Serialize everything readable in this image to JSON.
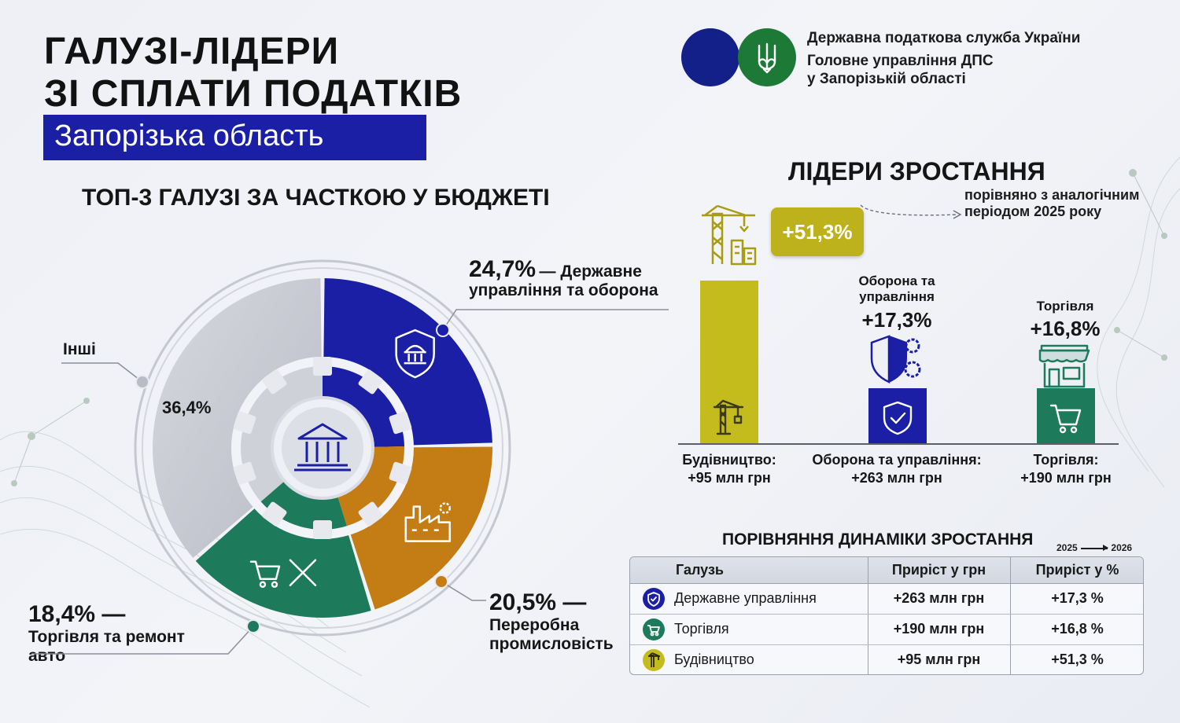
{
  "header": {
    "title_line1": "ГАЛУЗІ-ЛІДЕРИ",
    "title_line2": "ЗІ СПЛАТИ ПОДАТКІВ",
    "region": "Запорізька область"
  },
  "org": {
    "line1": "Державна податкова служба України",
    "line2": "Головне управління ДПС",
    "line3": "у Запорізькій області"
  },
  "colors": {
    "blue": "#1a1fa6",
    "olive": "#c4bb1c",
    "orange": "#c37d14",
    "green": "#1d7a5b",
    "grey": "#c7c9d1",
    "logo_blue": "#13208a",
    "logo_green": "#1d7a36"
  },
  "chart_data": [
    {
      "type": "pie",
      "title": "ТОП-3 ГАЛУЗІ ЗА ЧАСТКОЮ У БЮДЖЕТІ",
      "slices": [
        {
          "key": "gov",
          "value": 24.7,
          "percent_label": "24,7%",
          "label_rest": "— Державне",
          "label_line2": "управління та оборона",
          "color": "#1a1fa6",
          "icon": "shield-building-icon"
        },
        {
          "key": "industry",
          "value": 20.5,
          "percent_label": "20,5% —",
          "label_rest": "Переробна",
          "label_line2": "промисловість",
          "color": "#c37d14",
          "icon": "factory-icon"
        },
        {
          "key": "trade",
          "value": 18.4,
          "percent_label": "18,4% —",
          "label_rest": "Торгівля та ремонт",
          "label_line2": "авто",
          "color": "#1d7a5b",
          "icon": "cart-tools-icon"
        },
        {
          "key": "other",
          "value": 36.4,
          "percent_label": "36,4%",
          "label_rest": "Інші",
          "label_line2": "",
          "color": "#c7c9d1",
          "icon": ""
        }
      ],
      "center_icon": "bank-building-icon"
    },
    {
      "type": "bar",
      "title": "ЛІДЕРИ ЗРОСТАННЯ",
      "subtitle_line1": "порівняно з аналогічним",
      "subtitle_line2": "періодом 2025 року",
      "ylim": [
        0,
        55
      ],
      "bars": [
        {
          "key": "construction",
          "value": 51.3,
          "growth_label": "+51,3%",
          "name_top": "",
          "name_top2": "",
          "caption_line1": "Будівництво:",
          "caption_line2": "+95 млн грн",
          "color": "#c4bb1c",
          "icon": "crane-icon"
        },
        {
          "key": "defense",
          "value": 17.3,
          "growth_label": "+17,3%",
          "name_top": "Оборона та",
          "name_top2": "управління",
          "caption_line1": "Оборона та управління:",
          "caption_line2": "+263 млн грн",
          "color": "#1a1fa6",
          "icon": "shield-check-icon"
        },
        {
          "key": "trade",
          "value": 16.8,
          "growth_label": "+16,8%",
          "name_top": "Торгівля",
          "name_top2": "",
          "caption_line1": "Торгівля:",
          "caption_line2": "+190 млн грн",
          "color": "#1d7a5b",
          "icon": "shop-cart-icon"
        }
      ]
    },
    {
      "type": "table",
      "title": "ПОРІВНЯННЯ ДИНАМІКИ ЗРОСТАННЯ",
      "years_from": "2025",
      "years_to": "2026",
      "columns": [
        "Галузь",
        "Приріст у грн",
        "Приріст у %"
      ],
      "rows": [
        {
          "name": "Державне управління",
          "grn": "+263 млн грн",
          "pct": "+17,3 %",
          "icon_color": "#1a1fa6",
          "icon": "shield-check-icon"
        },
        {
          "name": "Торгівля",
          "grn": "+190 млн грн",
          "pct": "+16,8 %",
          "icon_color": "#1d7a5b",
          "icon": "cart-icon"
        },
        {
          "name": "Будівництво",
          "grn": "+95 млн грн",
          "pct": "+51,3 %",
          "icon_color": "#c4bb1c",
          "icon": "crane-icon"
        }
      ]
    }
  ]
}
